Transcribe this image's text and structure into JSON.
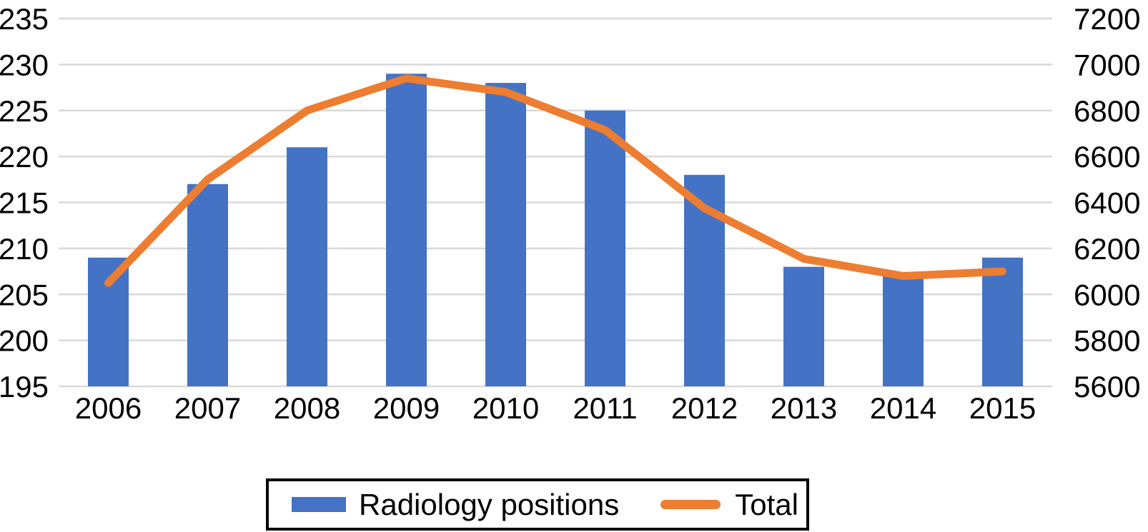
{
  "chart_data": {
    "type": "combo",
    "categories": [
      "2006",
      "2007",
      "2008",
      "2009",
      "2010",
      "2011",
      "2012",
      "2013",
      "2014",
      "2015"
    ],
    "series": [
      {
        "name": "Radiology positions",
        "type": "bar",
        "axis": "left",
        "color": "#4472C4",
        "values": [
          209,
          217,
          221,
          229,
          228,
          225,
          218,
          208,
          207,
          209
        ]
      },
      {
        "name": "Total",
        "type": "line",
        "axis": "right",
        "color": "#ED7D31",
        "values": [
          6050,
          6500,
          6800,
          6940,
          6880,
          6715,
          6375,
          6155,
          6080,
          6100
        ]
      }
    ],
    "left_axis": {
      "min": 195,
      "max": 235,
      "step": 5,
      "ticks": [
        "235",
        "230",
        "225",
        "220",
        "215",
        "210",
        "205",
        "200",
        "195"
      ]
    },
    "right_axis": {
      "min": 5600,
      "max": 7200,
      "step": 200,
      "ticks": [
        "7200",
        "7000",
        "6800",
        "6600",
        "6400",
        "6200",
        "6000",
        "5800",
        "5600"
      ]
    },
    "title": "",
    "xlabel": "",
    "ylabel": "",
    "grid": true,
    "gridline_color": "#D9D9D9",
    "text_color": "#000000",
    "background": "#FFFFFF",
    "legend_position": "bottom"
  },
  "legend": {
    "items": [
      {
        "label": "Radiology positions",
        "color": "#4472C4",
        "shape": "rect"
      },
      {
        "label": "Total",
        "color": "#ED7D31",
        "shape": "line"
      }
    ]
  }
}
